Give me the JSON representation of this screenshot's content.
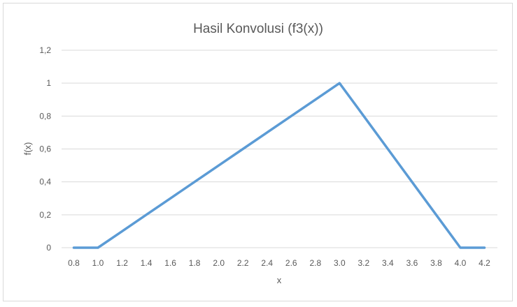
{
  "chart_data": {
    "type": "line",
    "title": "Hasil Konvolusi (f3(x))",
    "xlabel": "x",
    "ylabel": "f(x)",
    "x": [
      "0.8",
      "1.0",
      "1.2",
      "1.4",
      "1.6",
      "1.8",
      "2.0",
      "2.2",
      "2.4",
      "2.6",
      "2.8",
      "3.0",
      "3.2",
      "3.4",
      "3.6",
      "3.8",
      "4.0",
      "4.2"
    ],
    "series": [
      {
        "values": [
          0,
          0,
          0.1,
          0.2,
          0.3,
          0.4,
          0.5,
          0.6,
          0.7,
          0.8,
          0.9,
          1.0,
          0.8,
          0.6,
          0.4,
          0.2,
          0,
          0
        ]
      }
    ],
    "ylim": [
      0,
      1.2
    ],
    "yticks": [
      {
        "value": 0,
        "label": "0"
      },
      {
        "value": 0.2,
        "label": "0,2"
      },
      {
        "value": 0.4,
        "label": "0,4"
      },
      {
        "value": 0.6,
        "label": "0,6"
      },
      {
        "value": 0.8,
        "label": "0,8"
      },
      {
        "value": 1.0,
        "label": "1"
      },
      {
        "value": 1.2,
        "label": "1,2"
      }
    ],
    "grid": true,
    "legend": "none",
    "line_color": "#5b9bd5",
    "grid_color": "#d9d9d9",
    "text_color": "#595959"
  }
}
